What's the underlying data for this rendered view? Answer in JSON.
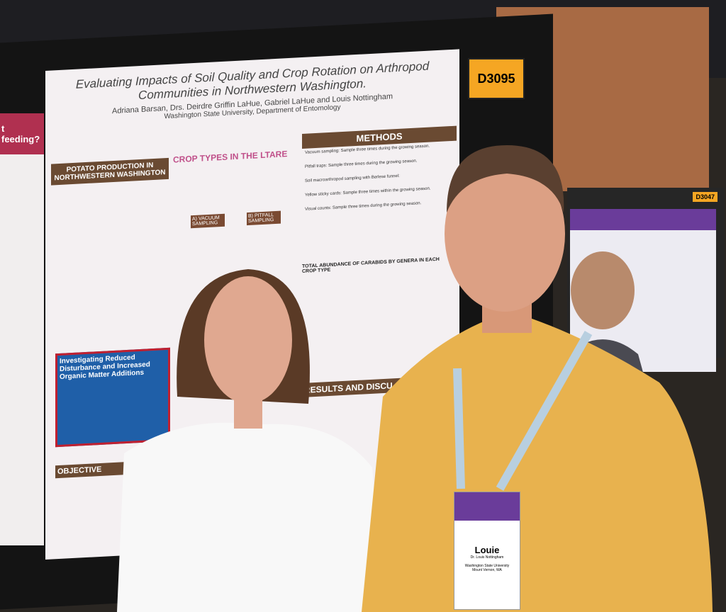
{
  "booth": {
    "number": "D3095",
    "neighbor_number": "D3047"
  },
  "poster": {
    "title": "Evaluating Impacts of Soil Quality and Crop Rotation on Arthropod Communities in Northwestern Washington.",
    "authors": "Adriana Barsan, Drs. Deirdre Griffin LaHue, Gabriel LaHue and Louis Nottingham",
    "affiliation": "Washington State University, Department of Entomology",
    "intro_heading": "POTATO PRODUCTION IN NORTHWESTERN WASHINGTON",
    "crop_heading": "CROP TYPES IN THE LTARE",
    "panels": [
      "A) VACUUM SAMPLING",
      "B) PITFALL SAMPLING"
    ],
    "methods_heading": "METHODS",
    "methods": [
      "Vacuum sampling: Sample three times during the growing season.",
      "Pitfall traps: Sample three times during the growing season.",
      "Soil macroarthropod sampling with Berlese funnel:",
      "Yellow sticky cards: Sample three times within the growing season.",
      "Visual counts: Sample three times during the growing season."
    ],
    "chart_heading": "TOTAL ABUNDANCE OF CARABIDS BY GENERA IN EACH CROP TYPE",
    "results_heading": "RESULTS AND DISCU",
    "box_heading": "Investigating Reduced Disturbance and Increased Organic Matter Additions",
    "objective_heading": "OBJECTIVE"
  },
  "left_poster": {
    "heading": "t feeding?"
  },
  "badge": {
    "name": "Louie",
    "detail": "Dr. Louis Nottingham",
    "org": "Washington State University",
    "location": "Mount Vernon, WA"
  }
}
